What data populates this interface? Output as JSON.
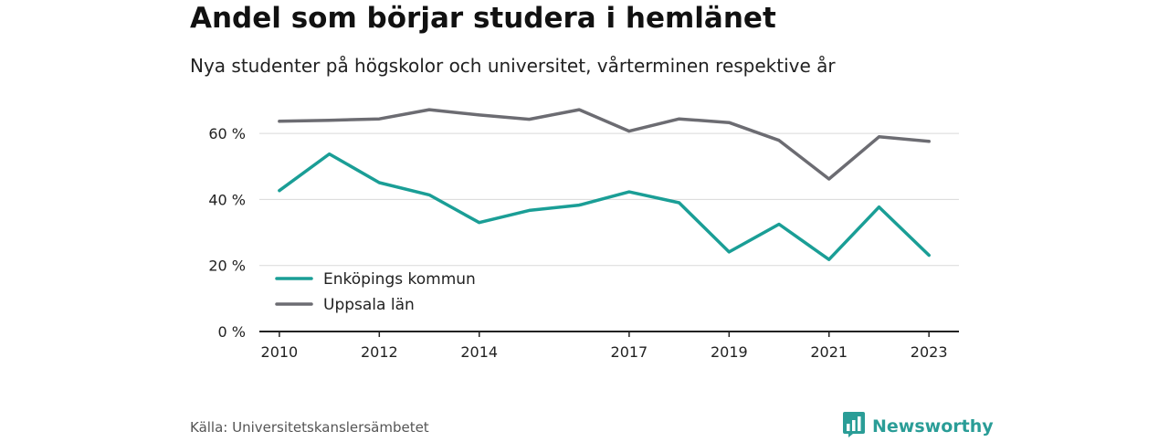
{
  "header": {
    "title": "Andel som börjar studera i hemlänet",
    "subtitle": "Nya studenter på högskolor och universitet, vårterminen respektive år"
  },
  "footer": {
    "source": "Källa: Universitetskanslersämbetet",
    "brand": "Newsworthy"
  },
  "colors": {
    "enkoping": "#1a9e96",
    "uppsala": "#6c6c72",
    "grid": "#d9d9d9",
    "axis": "#222222",
    "brand": "#2a9d97"
  },
  "icons": {
    "brand_logo": "bar-chart-speech-bubble-icon"
  },
  "chart_data": {
    "type": "line",
    "x": [
      2010,
      2011,
      2012,
      2013,
      2014,
      2015,
      2016,
      2017,
      2018,
      2019,
      2020,
      2021,
      2022,
      2023
    ],
    "x_tick_values": [
      2010,
      2012,
      2014,
      2017,
      2019,
      2021,
      2023
    ],
    "x_tick_labels": [
      "2010",
      "2012",
      "2014",
      "2017",
      "2019",
      "2021",
      "2023"
    ],
    "y_tick_values": [
      0,
      20,
      40,
      60
    ],
    "y_tick_labels": [
      "0 %",
      "20 %",
      "40 %",
      "60 %"
    ],
    "ylim": [
      0,
      70
    ],
    "xlim": [
      2009.6,
      2023.6
    ],
    "grid": true,
    "legend_position": "bottom-left",
    "series": [
      {
        "name": "Enköpings kommun",
        "color_key": "enkoping",
        "values": [
          42.7,
          53.8,
          45.1,
          41.4,
          33.0,
          36.7,
          38.3,
          42.3,
          39.0,
          24.1,
          32.5,
          21.8,
          37.7,
          23.1
        ]
      },
      {
        "name": "Uppsala län",
        "color_key": "uppsala",
        "values": [
          63.7,
          64.0,
          64.4,
          67.2,
          65.6,
          64.3,
          67.2,
          60.7,
          64.4,
          63.3,
          57.9,
          46.2,
          59.0,
          57.6
        ]
      }
    ]
  }
}
